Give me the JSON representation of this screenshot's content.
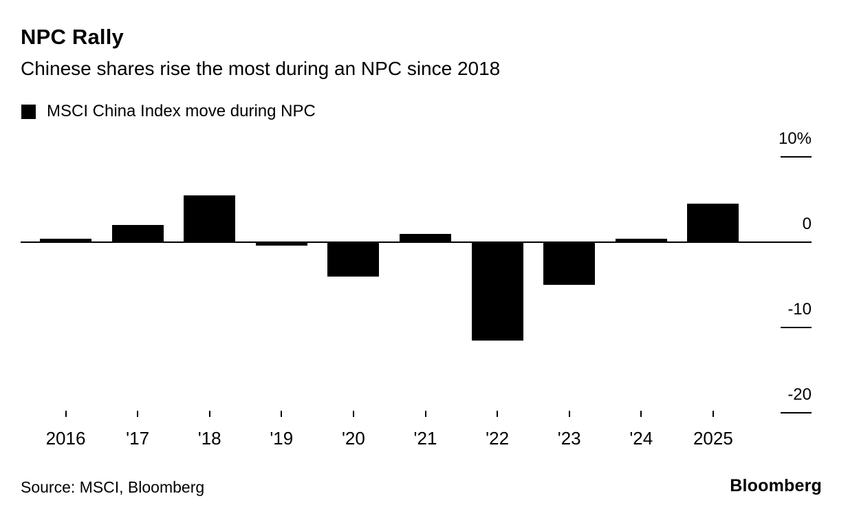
{
  "chart": {
    "title": "NPC Rally",
    "subtitle": "Chinese shares rise the most during an NPC since 2018",
    "legend_label": "MSCI China Index move during NPC",
    "source": "Source: MSCI, Bloomberg",
    "brand": "Bloomberg"
  },
  "chart_data": {
    "type": "bar",
    "title": "NPC Rally",
    "subtitle": "Chinese shares rise the most during an NPC since 2018",
    "series_name": "MSCI China Index move during NPC",
    "categories": [
      "2016",
      "'17",
      "'18",
      "'19",
      "'20",
      "'21",
      "'22",
      "'23",
      "'24",
      "2025"
    ],
    "values": [
      0.4,
      2,
      5.5,
      -0.4,
      -4,
      1,
      -11.5,
      -5,
      0.4,
      4.5
    ],
    "unit": "%",
    "bar_color": "#000000",
    "ylim": [
      -22,
      12
    ],
    "y_ticks": [
      {
        "label": "10%",
        "value": 10
      },
      {
        "label": "0",
        "value": 0
      },
      {
        "label": "-10",
        "value": -10
      },
      {
        "label": "-20",
        "value": -20
      }
    ],
    "grid": false,
    "legend_position": "top-left",
    "axis_side": "right"
  }
}
